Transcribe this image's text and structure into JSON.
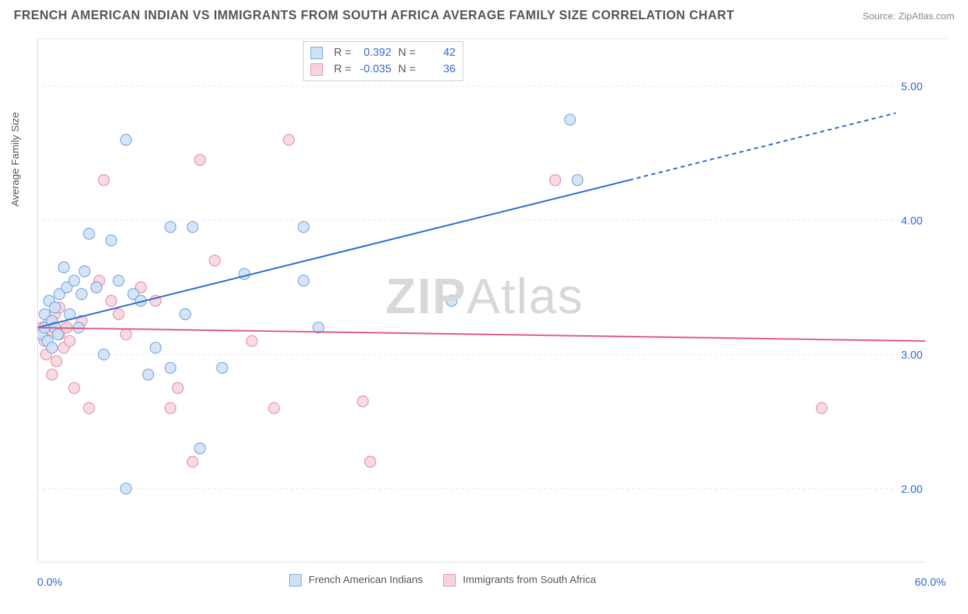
{
  "header": {
    "title": "FRENCH AMERICAN INDIAN VS IMMIGRANTS FROM SOUTH AFRICA AVERAGE FAMILY SIZE CORRELATION CHART",
    "source_prefix": "Source: ",
    "source_name": "ZipAtlas.com"
  },
  "watermark": {
    "bold": "ZIP",
    "rest": "Atlas"
  },
  "axes": {
    "ylabel": "Average Family Size",
    "xmin_label": "0.0%",
    "xmax_label": "60.0%",
    "xlim": [
      0,
      60
    ],
    "ylim": [
      1.45,
      5.35
    ],
    "ytick_values": [
      2.0,
      3.0,
      4.0,
      5.0
    ],
    "ytick_labels": [
      "2.00",
      "3.00",
      "4.00",
      "5.00"
    ],
    "xtick_values": [
      0,
      7.5,
      15,
      22.5,
      30,
      37.5,
      45,
      52.5,
      60
    ],
    "grid_color": "#e5e5e5",
    "axis_color": "#dddddd",
    "tick_label_color": "#2e6ad1",
    "tick_label_fontsize": 16
  },
  "series_blue": {
    "label": "French American Indians",
    "fill": "#cfe0f5",
    "stroke": "#6fa6e0",
    "line_color": "#2e6ad1",
    "R": "0.392",
    "N": "42",
    "trend": {
      "x1": 0,
      "y1": 3.2,
      "x2_solid": 40,
      "y2_solid": 4.3,
      "x2_dash": 58,
      "y2_dash": 4.8
    },
    "points": [
      [
        0.3,
        3.15
      ],
      [
        0.5,
        3.3
      ],
      [
        0.5,
        3.2
      ],
      [
        0.7,
        3.1
      ],
      [
        0.8,
        3.4
      ],
      [
        1.0,
        3.25
      ],
      [
        1.0,
        3.05
      ],
      [
        1.2,
        3.35
      ],
      [
        1.2,
        3.2
      ],
      [
        1.4,
        3.15
      ],
      [
        1.5,
        3.45
      ],
      [
        1.8,
        3.65
      ],
      [
        2.0,
        3.5
      ],
      [
        2.2,
        3.3
      ],
      [
        2.5,
        3.55
      ],
      [
        2.8,
        3.2
      ],
      [
        3.0,
        3.45
      ],
      [
        3.2,
        3.62
      ],
      [
        3.5,
        3.9
      ],
      [
        4.0,
        3.5
      ],
      [
        4.5,
        3.0
      ],
      [
        5.0,
        3.85
      ],
      [
        5.5,
        3.55
      ],
      [
        6.0,
        4.6
      ],
      [
        6.0,
        2.0
      ],
      [
        6.5,
        3.45
      ],
      [
        7.0,
        3.4
      ],
      [
        7.5,
        2.85
      ],
      [
        8.0,
        3.05
      ],
      [
        9.0,
        3.95
      ],
      [
        9.0,
        2.9
      ],
      [
        10.0,
        3.3
      ],
      [
        10.5,
        3.95
      ],
      [
        11.0,
        2.3
      ],
      [
        12.5,
        2.9
      ],
      [
        14.0,
        3.6
      ],
      [
        18.0,
        3.55
      ],
      [
        18.0,
        3.95
      ],
      [
        19.0,
        3.2
      ],
      [
        28.0,
        3.4
      ],
      [
        36.0,
        4.75
      ],
      [
        36.5,
        4.3
      ]
    ]
  },
  "series_pink": {
    "label": "Immigrants from South Africa",
    "fill": "#f7d4dd",
    "stroke": "#e48fa5",
    "line_color": "#e35a82",
    "R": "-0.035",
    "N": "36",
    "trend": {
      "x1": 0,
      "y1": 3.2,
      "x2": 60,
      "y2": 3.1
    },
    "points": [
      [
        0.3,
        3.2
      ],
      [
        0.5,
        3.1
      ],
      [
        0.6,
        3.0
      ],
      [
        0.8,
        3.25
      ],
      [
        1.0,
        3.18
      ],
      [
        1.2,
        3.3
      ],
      [
        1.3,
        2.95
      ],
      [
        1.5,
        3.15
      ],
      [
        1.5,
        3.35
      ],
      [
        1.8,
        3.05
      ],
      [
        2.0,
        3.2
      ],
      [
        2.2,
        3.1
      ],
      [
        2.5,
        2.75
      ],
      [
        3.0,
        3.25
      ],
      [
        3.5,
        2.6
      ],
      [
        4.0,
        3.5
      ],
      [
        4.2,
        3.55
      ],
      [
        4.5,
        4.3
      ],
      [
        5.0,
        3.4
      ],
      [
        5.5,
        3.3
      ],
      [
        6.0,
        3.15
      ],
      [
        7.0,
        3.5
      ],
      [
        8.0,
        3.4
      ],
      [
        9.0,
        2.6
      ],
      [
        9.5,
        2.75
      ],
      [
        10.5,
        2.2
      ],
      [
        11.0,
        4.45
      ],
      [
        12.0,
        3.7
      ],
      [
        14.5,
        3.1
      ],
      [
        16.0,
        2.6
      ],
      [
        17.0,
        4.6
      ],
      [
        22.0,
        2.65
      ],
      [
        22.5,
        2.2
      ],
      [
        35.0,
        4.3
      ],
      [
        53.0,
        2.6
      ],
      [
        1.0,
        2.85
      ]
    ]
  },
  "legend": {
    "R_label": "R =",
    "N_label": "N ="
  },
  "plot_style": {
    "point_radius": 8,
    "point_opacity": 0.85,
    "line_width": 2.2,
    "background": "#ffffff"
  }
}
